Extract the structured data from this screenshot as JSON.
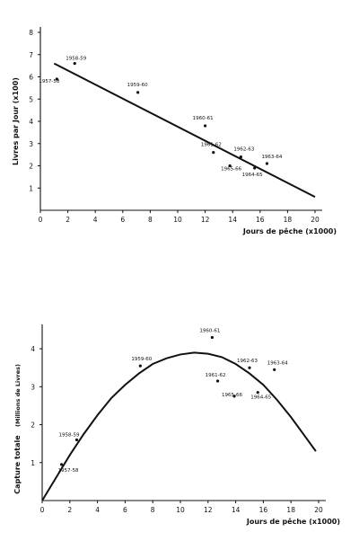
{
  "chart_data": [
    {
      "type": "scatter",
      "title": "",
      "xlabel": "Jours de pêche (x1000)",
      "ylabel": "Livres par Jour (x100)",
      "xlim": [
        0,
        20
      ],
      "ylim": [
        0,
        8
      ],
      "x_ticks": [
        0,
        2,
        4,
        6,
        8,
        10,
        12,
        14,
        16,
        18,
        20
      ],
      "y_ticks": [
        1,
        2,
        3,
        4,
        5,
        6,
        7,
        8
      ],
      "grid": false,
      "points": [
        {
          "label": "1957-58",
          "x": 1.2,
          "y": 5.9
        },
        {
          "label": "1958-59",
          "x": 2.5,
          "y": 6.6
        },
        {
          "label": "1959-60",
          "x": 7.1,
          "y": 5.3
        },
        {
          "label": "1960-61",
          "x": 12.0,
          "y": 3.8
        },
        {
          "label": "1961-62",
          "x": 12.6,
          "y": 2.6
        },
        {
          "label": "1962-63",
          "x": 14.6,
          "y": 2.4
        },
        {
          "label": "1965-66",
          "x": 13.8,
          "y": 2.0
        },
        {
          "label": "1963-64",
          "x": 16.5,
          "y": 2.1
        },
        {
          "label": "1964-65",
          "x": 15.6,
          "y": 1.9
        }
      ],
      "fit_line": {
        "type": "linear",
        "from": [
          1.0,
          6.6
        ],
        "to": [
          20.0,
          0.6
        ]
      }
    },
    {
      "type": "scatter",
      "title": "",
      "xlabel": "Jours de pêche (x1000)",
      "ylabel": "Capture totale",
      "ylabel_unit": "(Millions de Livres)",
      "xlim": [
        0,
        20
      ],
      "ylim": [
        0,
        4.5
      ],
      "x_ticks": [
        0,
        2,
        4,
        6,
        8,
        10,
        12,
        14,
        16,
        18,
        20
      ],
      "y_ticks": [
        1,
        2,
        3,
        4
      ],
      "grid": false,
      "points": [
        {
          "label": "1957-58",
          "x": 1.4,
          "y": 0.95
        },
        {
          "label": "1958-59",
          "x": 2.5,
          "y": 1.6
        },
        {
          "label": "1959-60",
          "x": 7.1,
          "y": 3.55
        },
        {
          "label": "1960-61",
          "x": 12.3,
          "y": 4.3
        },
        {
          "label": "1961-62",
          "x": 12.7,
          "y": 3.15
        },
        {
          "label": "1962-63",
          "x": 15.0,
          "y": 3.5
        },
        {
          "label": "1965-66",
          "x": 13.9,
          "y": 2.75
        },
        {
          "label": "1963-64",
          "x": 16.8,
          "y": 3.45
        },
        {
          "label": "1964-65",
          "x": 15.6,
          "y": 2.85
        }
      ],
      "fit_curve": {
        "type": "curve",
        "points": [
          [
            0,
            0
          ],
          [
            1,
            0.6
          ],
          [
            2,
            1.2
          ],
          [
            3,
            1.75
          ],
          [
            4,
            2.25
          ],
          [
            5,
            2.7
          ],
          [
            6,
            3.05
          ],
          [
            7,
            3.35
          ],
          [
            8,
            3.6
          ],
          [
            9,
            3.75
          ],
          [
            10,
            3.85
          ],
          [
            11,
            3.9
          ],
          [
            12,
            3.87
          ],
          [
            13,
            3.78
          ],
          [
            14,
            3.6
          ],
          [
            15,
            3.35
          ],
          [
            16,
            3.05
          ],
          [
            17,
            2.65
          ],
          [
            18,
            2.2
          ],
          [
            19,
            1.7
          ],
          [
            19.8,
            1.3
          ]
        ]
      }
    }
  ]
}
